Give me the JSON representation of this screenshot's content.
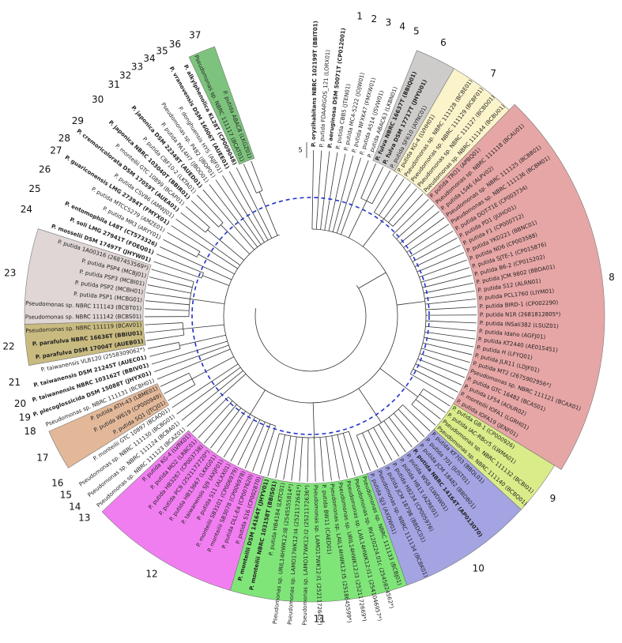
{
  "leaves": [
    "P. oryzihabitans NBRC 102199T (BBIT01)",
    "P. putida FDAARGOS_121 (LORX01)",
    "P. aeruginosa DSM 50071T (CP012001)",
    "P. putida CBB5 (JTEN01)",
    "P. putida MC4-5222 (JOJW01)",
    "P. putida NFXK47 (FMXW01)",
    "P. putida A514 (JSVW01)",
    "P. putida ABAC63 (LKBN01)",
    "P. fulva NBRC 16637T (BBIQ01)",
    "P. fulva DSM 17717T (JHYU01)",
    "P. putida SF610 (AYNC01)",
    "P. putida KG-4 (LVHH01)",
    "Pseudomonas sp. NBRC 111128 (BCBE01)",
    "Pseudomonas sp. NBRC 111129 (BCBF01)",
    "Pseudomonas sp. NBRC 111127 (BCBD01)",
    "Pseudomonas sp. NBRC 111144 (BCBU01)",
    "P. putida TRO1 (APBQ01)",
    "Pseudomonas sp. NBRC 111118 (BCAU01)",
    "P. putida LS46 (ALPV02)",
    "Pseudomonas sp. NBRC 111125 (BCBB01)",
    "Pseudomonas sp. NBRC 111136 (BCBM01)",
    "P. putida DOT-T1E (CP003734)",
    "P. putida PD1 (JUHO01)",
    "P. putida F1 (CP000712)",
    "P. putida YKD221 (BBNC01)",
    "P. putida ND6 (CP003588)",
    "P. putida SJTE-1 (CP015876)",
    "P. putida B6-2 (CP015202)",
    "P. putida JCM 9802 (BBDA01)",
    "P. putida S12 (ALRN01)",
    "P. putida PCL1760 (LIYM01)",
    "P. putida BIRD-1 (CP002290)",
    "P. putida N1R (2681812805*)",
    "P. putida INSali382 (LSUZ01)",
    "P. putida Idaho (AGFJ01)",
    "P. putida KT2440 (AE015451)",
    "P. putida H (LFYQ01)",
    "P. putida JLR11 (LDJF01)",
    "P. putida MT2 (2675902956*)",
    "Pseudomonas sp. NBRC 111121 (BCAX01)",
    "P. putida GTC 16482 (BCAS01)",
    "P. putida LF54 (AOUR02)",
    "P. monteilii IOFA1 (LGRH01)",
    "P. putida IOFA19 (JENF01)",
    "P. putida GB-1 (CP000926)",
    "P. putida IAC-RBcr5 (LWMA01)",
    "Pseudomonas sp. NBRC 111132 (BCBI01)",
    "Pseudomonas sp. NBRC 111140 (BCBQ01)",
    "P. putida KF703 (BBQL01)",
    "P. putida 701 (JUST01)",
    "P. putida JCM 18482 (BBDB01)",
    "P. putida NBRC 14164T (AP013070)",
    "P. putida WS8 (LWDW01)",
    "P. putida HB13 (AZRE01)",
    "P. putida H8234 (CP005976)",
    "P. putida JCM 18798 (BBDC01)",
    "Pseudomonas sp. NBRC 111134 (BCBK01)",
    "P. putida SJ3 (AXDW01)",
    "Pseudomonas sp. NBRC 111133 (BCBJ01)",
    "Pseudomonas sp. RV120224.01c (2545824562*)",
    "Pseudomonas sp. LAIL14HWK12:I11 (2541046957*)",
    "Pseudomonas sp. URIL14HWK12:I3 (2521172669*)",
    "Pseudomonas sp. LAIL14HWK12:I5 (2518645599*)",
    "P. putida BW11 (CAED01)",
    "Pseudomonas sp. LAMO17WK12:I1 (2521172645*)",
    "Pseudomonas sp. LAMO17WK12:I2 (2521172636*)",
    "Pseudomonas sp. LAMO17WK12:I4 (2521172641*)",
    "Pseudomonas sp. URIL14HWK12:I8 (2545555814*)",
    "P. putida HB4184 (LKTC01)",
    "P. monteilii NBRC 103158T (BBIS01)",
    "P. monteilii DSM 14164T (JHYV01)",
    "P. putida S16 (CP002870)",
    "P. putida DLL-E4 (CP007620)",
    "P. monteilii SB3078 (CP006978)",
    "P. monteilii SB3101 (CP006979)",
    "P. putida S11 (ALXX01)",
    "P. taiwanensis SJ9 (AXJF01)",
    "P. putida HB13667 (LKKG01)",
    "P. putida PC9 (2521172720*)",
    "P. putida HB3267 (CP003738)",
    "P. putida MO2 (LRBC01)",
    "P. putida KG-4 (LVRK01)",
    "Pseudomonas sp. NBRC 111123 (BCAZ01)",
    "Pseudomonas sp. NBRC 111124 (BCBA01)",
    "Pseudomonas sp. NBRC 111130 (BCBG01)",
    "P. monteilii GTC 10897 (BCAO01)",
    "P. putida SQ1 (JTCJ01)",
    "P. putida W619 (CP000949)",
    "P. putida ATH-43 (LBME01)",
    "Pseudomonas sp. NBRC 111131 (BCBH01)",
    "P. plecoglossicida DSM 15088T (JHYX01)",
    "P. taiwanensis NBRC 103162T (BBIV01)",
    "P. taiwanensis DSM 21245T (AUEC01)",
    "P. taiwanensis VLB120 (2558309062*)",
    "P. parafulva DSM 17004T (AUEB01)",
    "P. parafulva NBRC 16636T (BBIU01)",
    "Pseudomonas sp. NBRC 111119 (BCAV01)",
    "Pseudomonas sp. NBRC 111142 (BCBS01)",
    "Pseudomonas sp. NBRC 111143 (BCBT01)",
    "P. putida PSP1 (MCBG01)",
    "P. putida PSP2 (MCBH01)",
    "P. putida PSP3 (MCBI01)",
    "P. putida PSP4 (MCBJ01)",
    "P. putida 1A00316 (2687453569*)",
    "P. mosselii DSM 17497T (JHYW01)",
    "P. soli LMG 27941T (FOEQ01)",
    "P. entomophila L48T (CT573326)",
    "P. putida MR3 (ARYY01)",
    "P. putida MTCC5279 (AMZE01)",
    "P. guariconensis LMG 27394T (FMYX01)",
    "P. putida CSV86 (AMWJ01)",
    "P. cremoricolorata DSM 17059T (AUEA01)",
    "P. monteilii GTC 10899 (BCAP01)",
    "P. japonica NBRC 103040T (BBIR01)",
    "P. putida CBF10-2 (LKTA01)",
    "P. japonica DSM 22348T (AUED01)",
    "P. putida PA14H7 (JBOO01)",
    "Pseudomonas sp. P482 (JBOP01)",
    "P. donghuensis HYS (AJJF01)",
    "P. vranovensis DSM 16006T (AUEE01)",
    "P. alkylphenolica KL28T (CP009048)",
    "Pseudomonas sp. NBRC 111117 (BCAT01)",
    "P. putida ABAC8 (LKGZ01)"
  ],
  "clade_labels": [
    "1",
    "2",
    "3",
    "4",
    "5",
    "6",
    "7",
    "8",
    "9",
    "10",
    "11",
    "12",
    "13",
    "14",
    "15",
    "16",
    "17",
    "18",
    "19",
    "20",
    "21",
    "22",
    "23",
    "24",
    "25",
    "26",
    "27",
    "28",
    "29",
    "30",
    "31",
    "32",
    "33",
    "34",
    "35",
    "36",
    "37"
  ],
  "scale_label": "5"
}
